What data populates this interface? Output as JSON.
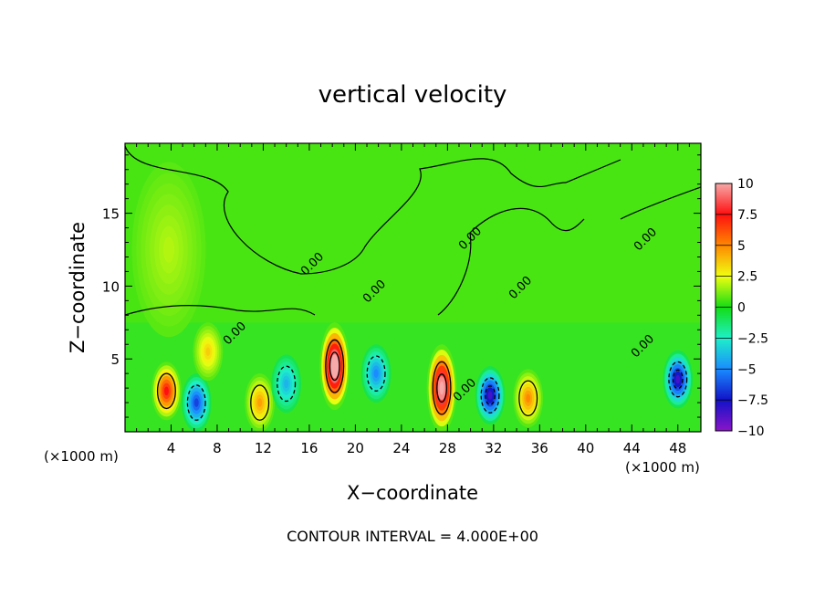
{
  "chart_data": {
    "type": "heatmap",
    "title": "vertical velocity",
    "xlabel": "X−coordinate",
    "ylabel": "Z−coordinate",
    "x_unit_left": "(×1000 m)",
    "x_unit_right": "(×1000 m)",
    "footer": "CONTOUR INTERVAL = 4.000E+00",
    "xlim": [
      0,
      50
    ],
    "ylim": [
      0,
      19.8
    ],
    "x_ticks": [
      4,
      8,
      12,
      16,
      20,
      24,
      28,
      32,
      36,
      40,
      44,
      48
    ],
    "x_tick_labels": [
      "4",
      "8",
      "12",
      "16",
      "20",
      "24",
      "28",
      "32",
      "36",
      "40",
      "44",
      "48"
    ],
    "y_ticks": [
      5,
      10,
      15
    ],
    "y_tick_labels": [
      "5",
      "10",
      "15"
    ],
    "contour_labels": [
      "0.00",
      "0.00",
      "0.00",
      "0.00",
      "0.00",
      "0.00",
      "0.00",
      "0.00"
    ],
    "colorbar": {
      "vmin": -10,
      "vmax": 10,
      "tick_values": [
        10,
        7.5,
        5,
        2.5,
        0,
        -2.5,
        -5,
        -7.5,
        -10
      ],
      "tick_labels": [
        "10",
        "7.5",
        "5",
        "2.5",
        "0",
        "−2.5",
        "−5",
        "−7.5",
        "−10"
      ],
      "colors": [
        "#f7a8a8",
        "#ff1010",
        "#ff8800",
        "#f0ff10",
        "#14dd14",
        "#1ef0c8",
        "#1a8cff",
        "#1212c8",
        "#8a14c8"
      ]
    },
    "features": [
      {
        "x": 3.6,
        "z": 2.8,
        "w": 7.5
      },
      {
        "x": 6.2,
        "z": 2.0,
        "w": -6.5
      },
      {
        "x": 7.2,
        "z": 5.5,
        "w": 3.5
      },
      {
        "x": 11.7,
        "z": 2.0,
        "w": 4.5
      },
      {
        "x": 14.0,
        "z": 3.3,
        "w": -4.0
      },
      {
        "x": 18.2,
        "z": 4.5,
        "w": 12.0
      },
      {
        "x": 21.8,
        "z": 4.0,
        "w": -5.0
      },
      {
        "x": 27.5,
        "z": 3.0,
        "w": 11.0
      },
      {
        "x": 31.7,
        "z": 2.5,
        "w": -8.5
      },
      {
        "x": 35.0,
        "z": 2.3,
        "w": 5.0
      },
      {
        "x": 48.0,
        "z": 3.6,
        "w": -8.5
      },
      {
        "x": 3.8,
        "z": 12.5,
        "w": 1.8
      }
    ]
  }
}
